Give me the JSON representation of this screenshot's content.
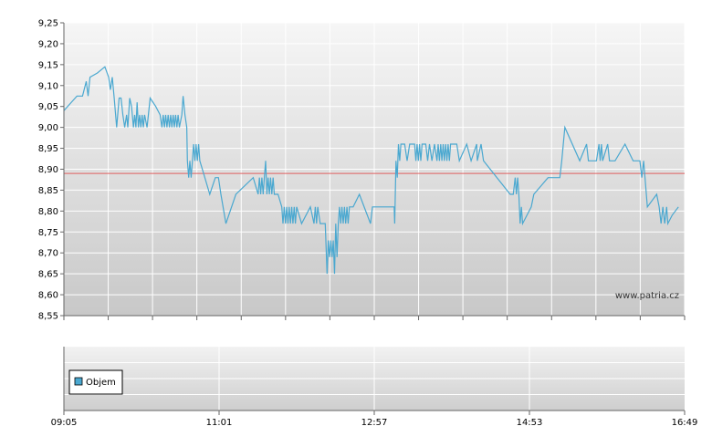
{
  "chart_data": [
    {
      "type": "line",
      "title": "",
      "xlabel": "",
      "ylabel": "",
      "ylim": [
        8.55,
        9.25
      ],
      "y_ticks": [
        "9,25",
        "9,20",
        "9,15",
        "9,10",
        "9,05",
        "9,00",
        "8,95",
        "8,90",
        "8,85",
        "8,80",
        "8,75",
        "8,70",
        "8,65",
        "8,60",
        "8,55"
      ],
      "grid": true,
      "reference_line": {
        "value": 8.89,
        "color": "#e06060"
      },
      "watermark": "www.patria.cz",
      "series": [
        {
          "color": "#4aa8d0",
          "points": [
            [
              0.0,
              9.04
            ],
            [
              1.2,
              9.06
            ],
            [
              2.1,
              9.075
            ],
            [
              3.0,
              9.075
            ],
            [
              3.6,
              9.11
            ],
            [
              3.9,
              9.075
            ],
            [
              4.2,
              9.12
            ],
            [
              5.4,
              9.13
            ],
            [
              6.6,
              9.145
            ],
            [
              7.2,
              9.12
            ],
            [
              7.5,
              9.09
            ],
            [
              7.8,
              9.12
            ],
            [
              8.1,
              9.07
            ],
            [
              8.5,
              9.0
            ],
            [
              8.9,
              9.07
            ],
            [
              9.2,
              9.07
            ],
            [
              9.5,
              9.03
            ],
            [
              9.8,
              9.0
            ],
            [
              10.1,
              9.03
            ],
            [
              10.3,
              9.0
            ],
            [
              10.6,
              9.07
            ],
            [
              10.9,
              9.05
            ],
            [
              11.2,
              9.0
            ],
            [
              11.4,
              9.03
            ],
            [
              11.6,
              9.0
            ],
            [
              11.8,
              9.06
            ],
            [
              12.0,
              9.0
            ],
            [
              12.2,
              9.03
            ],
            [
              12.4,
              9.0
            ],
            [
              12.6,
              9.03
            ],
            [
              12.8,
              9.0
            ],
            [
              13.0,
              9.03
            ],
            [
              13.4,
              9.0
            ],
            [
              13.9,
              9.07
            ],
            [
              14.8,
              9.05
            ],
            [
              15.5,
              9.03
            ],
            [
              15.8,
              9.0
            ],
            [
              16.0,
              9.03
            ],
            [
              16.2,
              9.0
            ],
            [
              16.4,
              9.03
            ],
            [
              16.6,
              9.0
            ],
            [
              16.8,
              9.03
            ],
            [
              17.0,
              9.0
            ],
            [
              17.2,
              9.03
            ],
            [
              17.4,
              9.0
            ],
            [
              17.6,
              9.03
            ],
            [
              17.8,
              9.0
            ],
            [
              18.0,
              9.03
            ],
            [
              18.2,
              9.0
            ],
            [
              18.4,
              9.03
            ],
            [
              18.6,
              9.0
            ],
            [
              19.0,
              9.03
            ],
            [
              19.2,
              9.075
            ],
            [
              19.5,
              9.03
            ],
            [
              19.8,
              9.0
            ],
            [
              19.9,
              8.92
            ],
            [
              20.1,
              8.88
            ],
            [
              20.3,
              8.92
            ],
            [
              20.5,
              8.88
            ],
            [
              20.7,
              8.92
            ],
            [
              20.9,
              8.96
            ],
            [
              21.1,
              8.92
            ],
            [
              21.3,
              8.96
            ],
            [
              21.5,
              8.92
            ],
            [
              21.7,
              8.96
            ],
            [
              21.9,
              8.92
            ],
            [
              22.7,
              8.88
            ],
            [
              23.5,
              8.84
            ],
            [
              24.4,
              8.88
            ],
            [
              24.9,
              8.88
            ],
            [
              25.3,
              8.84
            ],
            [
              26.1,
              8.77
            ],
            [
              27.7,
              8.84
            ],
            [
              30.5,
              8.88
            ],
            [
              31.3,
              8.84
            ],
            [
              31.5,
              8.88
            ],
            [
              31.7,
              8.84
            ],
            [
              31.9,
              8.88
            ],
            [
              32.1,
              8.84
            ],
            [
              32.3,
              8.88
            ],
            [
              32.5,
              8.92
            ],
            [
              32.7,
              8.84
            ],
            [
              32.9,
              8.88
            ],
            [
              33.1,
              8.84
            ],
            [
              33.3,
              8.88
            ],
            [
              33.5,
              8.84
            ],
            [
              33.7,
              8.88
            ],
            [
              33.9,
              8.84
            ],
            [
              34.5,
              8.84
            ],
            [
              35.1,
              8.81
            ],
            [
              35.3,
              8.77
            ],
            [
              35.5,
              8.81
            ],
            [
              35.7,
              8.77
            ],
            [
              35.9,
              8.81
            ],
            [
              36.1,
              8.77
            ],
            [
              36.3,
              8.81
            ],
            [
              36.5,
              8.77
            ],
            [
              36.7,
              8.81
            ],
            [
              36.9,
              8.77
            ],
            [
              37.1,
              8.81
            ],
            [
              37.3,
              8.77
            ],
            [
              37.5,
              8.81
            ],
            [
              38.3,
              8.77
            ],
            [
              39.7,
              8.81
            ],
            [
              40.3,
              8.77
            ],
            [
              40.5,
              8.81
            ],
            [
              40.7,
              8.77
            ],
            [
              40.9,
              8.81
            ],
            [
              41.3,
              8.77
            ],
            [
              42.1,
              8.77
            ],
            [
              42.4,
              8.65
            ],
            [
              42.6,
              8.73
            ],
            [
              42.8,
              8.69
            ],
            [
              43.0,
              8.73
            ],
            [
              43.2,
              8.69
            ],
            [
              43.4,
              8.73
            ],
            [
              43.6,
              8.65
            ],
            [
              43.8,
              8.77
            ],
            [
              44.0,
              8.69
            ],
            [
              44.2,
              8.77
            ],
            [
              44.4,
              8.81
            ],
            [
              44.6,
              8.77
            ],
            [
              44.8,
              8.81
            ],
            [
              45.0,
              8.77
            ],
            [
              45.2,
              8.81
            ],
            [
              45.4,
              8.77
            ],
            [
              45.6,
              8.81
            ],
            [
              45.8,
              8.77
            ],
            [
              46.0,
              8.81
            ],
            [
              46.6,
              8.81
            ],
            [
              47.6,
              8.84
            ],
            [
              49.4,
              8.77
            ],
            [
              49.7,
              8.81
            ],
            [
              53.2,
              8.81
            ],
            [
              53.3,
              8.77
            ],
            [
              53.5,
              8.92
            ],
            [
              53.7,
              8.88
            ],
            [
              53.9,
              8.96
            ],
            [
              54.1,
              8.92
            ],
            [
              54.3,
              8.96
            ],
            [
              54.9,
              8.96
            ],
            [
              55.3,
              8.92
            ],
            [
              55.7,
              8.96
            ],
            [
              56.5,
              8.96
            ],
            [
              56.7,
              8.92
            ],
            [
              56.9,
              8.96
            ],
            [
              57.1,
              8.92
            ],
            [
              57.3,
              8.96
            ],
            [
              57.5,
              8.92
            ],
            [
              57.7,
              8.96
            ],
            [
              58.3,
              8.96
            ],
            [
              58.6,
              8.92
            ],
            [
              58.9,
              8.96
            ],
            [
              59.3,
              8.92
            ],
            [
              59.7,
              8.96
            ],
            [
              60.1,
              8.92
            ],
            [
              60.3,
              8.96
            ],
            [
              60.5,
              8.92
            ],
            [
              60.7,
              8.96
            ],
            [
              60.9,
              8.92
            ],
            [
              61.1,
              8.96
            ],
            [
              61.3,
              8.92
            ],
            [
              61.5,
              8.96
            ],
            [
              61.7,
              8.92
            ],
            [
              61.9,
              8.96
            ],
            [
              62.1,
              8.92
            ],
            [
              62.3,
              8.96
            ],
            [
              63.3,
              8.96
            ],
            [
              63.7,
              8.92
            ],
            [
              64.9,
              8.96
            ],
            [
              65.6,
              8.92
            ],
            [
              66.5,
              8.96
            ],
            [
              66.6,
              8.92
            ],
            [
              67.2,
              8.96
            ],
            [
              67.6,
              8.92
            ],
            [
              71.9,
              8.84
            ],
            [
              72.4,
              8.84
            ],
            [
              72.7,
              8.88
            ],
            [
              72.9,
              8.84
            ],
            [
              73.1,
              8.88
            ],
            [
              73.3,
              8.84
            ],
            [
              73.5,
              8.77
            ],
            [
              73.7,
              8.81
            ],
            [
              73.9,
              8.77
            ],
            [
              75.3,
              8.81
            ],
            [
              75.7,
              8.84
            ],
            [
              78.0,
              8.88
            ],
            [
              79.9,
              8.88
            ],
            [
              80.2,
              8.92
            ],
            [
              80.7,
              9.0
            ],
            [
              83.1,
              8.92
            ],
            [
              84.2,
              8.96
            ],
            [
              84.5,
              8.92
            ],
            [
              85.8,
              8.92
            ],
            [
              86.2,
              8.96
            ],
            [
              86.4,
              8.92
            ],
            [
              86.6,
              8.96
            ],
            [
              86.8,
              8.92
            ],
            [
              87.6,
              8.96
            ],
            [
              87.9,
              8.92
            ],
            [
              88.8,
              8.92
            ],
            [
              90.4,
              8.96
            ],
            [
              91.7,
              8.92
            ],
            [
              92.8,
              8.92
            ],
            [
              93.1,
              8.88
            ],
            [
              93.4,
              8.92
            ],
            [
              94.0,
              8.81
            ],
            [
              95.5,
              8.84
            ],
            [
              95.9,
              8.81
            ],
            [
              96.2,
              8.77
            ],
            [
              96.5,
              8.81
            ],
            [
              96.8,
              8.77
            ],
            [
              97.1,
              8.81
            ],
            [
              97.3,
              8.77
            ],
            [
              98.0,
              8.79
            ],
            [
              99.0,
              8.81
            ]
          ]
        }
      ],
      "x_ticks": [
        0,
        7.14,
        14.28,
        21.42,
        28.57,
        35.71,
        42.85,
        50.0,
        57.14,
        64.28,
        71.42,
        78.57,
        85.71,
        92.85,
        100
      ]
    },
    {
      "type": "bar",
      "title": "",
      "legend": {
        "placement": "bottom-left",
        "entries": [
          {
            "label": "Objem",
            "color": "#4aa8d0"
          }
        ]
      },
      "x_tick_labels": [
        "09:05",
        "11:01",
        "12:57",
        "14:53",
        "16:49"
      ],
      "values": []
    }
  ]
}
